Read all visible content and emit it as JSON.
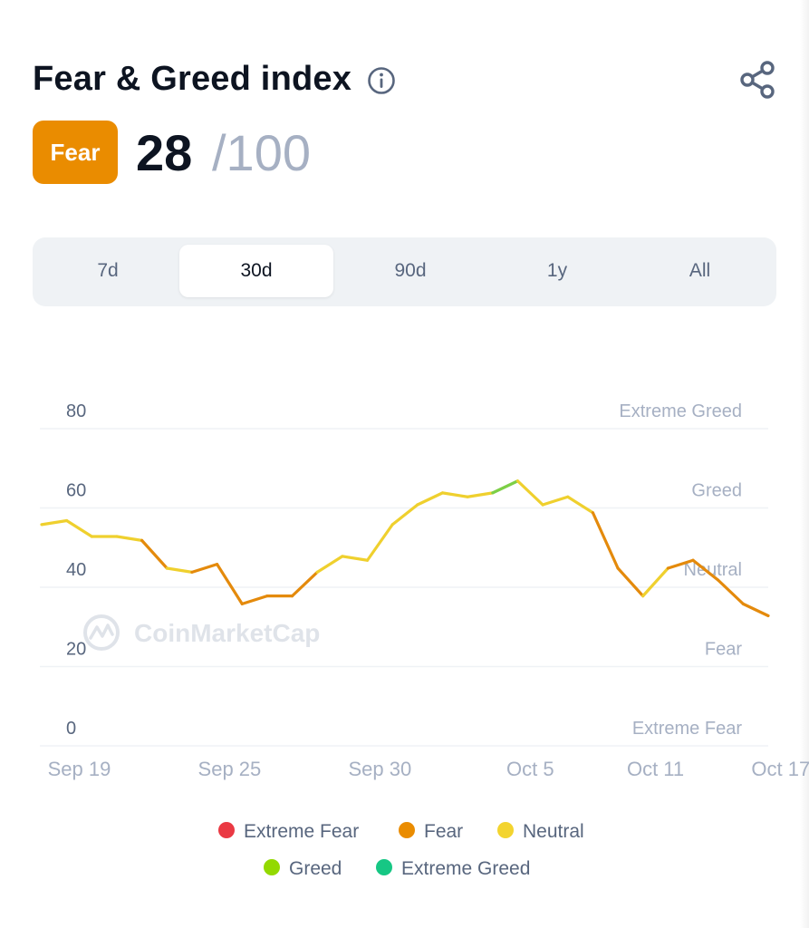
{
  "header": {
    "title": "Fear & Greed index",
    "info_icon": "info-icon",
    "share_icon": "share-icon"
  },
  "score": {
    "label": "Fear",
    "value": "28",
    "max": "/100",
    "badge_color": "#ea8c00"
  },
  "tabs": [
    {
      "label": "7d",
      "active": false
    },
    {
      "label": "30d",
      "active": true
    },
    {
      "label": "90d",
      "active": false
    },
    {
      "label": "1y",
      "active": false
    },
    {
      "label": "All",
      "active": false
    }
  ],
  "watermark": "CoinMarketCap",
  "chart_data": {
    "type": "line",
    "ylim": [
      0,
      80
    ],
    "yticks": [
      80,
      60,
      40,
      20,
      0
    ],
    "ytick_labels": [
      "80",
      "60",
      "40",
      "20",
      "0"
    ],
    "zone_labels": [
      "Extreme Greed",
      "Greed",
      "Neutral",
      "Fear",
      "Extreme Fear"
    ],
    "xtick_labels": [
      "Sep 19",
      "Sep 25",
      "Sep 30",
      "Oct 5",
      "Oct 11",
      "Oct 17"
    ],
    "xtick_index": [
      1.5,
      7.5,
      13.5,
      19.5,
      24.5,
      29.5
    ],
    "grid": true,
    "series": [
      {
        "values": [
          51,
          52,
          48,
          48,
          47,
          40,
          39,
          41,
          31,
          33,
          33,
          39,
          43,
          42,
          51,
          56,
          59,
          58,
          59,
          62,
          56,
          58,
          54,
          40,
          33,
          40,
          42,
          37,
          31,
          28
        ],
        "zones": [
          "Fear",
          "Neutral",
          "Neutral",
          "Neutral",
          "Neutral",
          "Fear",
          "Neutral",
          "Fear",
          "Fear",
          "Fear",
          "Fear",
          "Fear",
          "Neutral",
          "Neutral",
          "Neutral",
          "Neutral",
          "Neutral",
          "Neutral",
          "Neutral",
          "Greed",
          "Neutral",
          "Neutral",
          "Neutral",
          "Fear",
          "Fear",
          "Neutral",
          "Fear",
          "Fear",
          "Fear",
          "Fear"
        ]
      }
    ],
    "legend": [
      {
        "name": "Extreme Fear",
        "color": "#ea3943"
      },
      {
        "name": "Fear",
        "color": "#ea8c00"
      },
      {
        "name": "Neutral",
        "color": "#f3d42f"
      },
      {
        "name": "Greed",
        "color": "#93d900"
      },
      {
        "name": "Extreme Greed",
        "color": "#16c784"
      }
    ],
    "legend_position": "bottom",
    "zone_colors": {
      "Fear": "#e48a0c",
      "Neutral": "#efd02e",
      "Greed": "#7dcf46"
    }
  }
}
